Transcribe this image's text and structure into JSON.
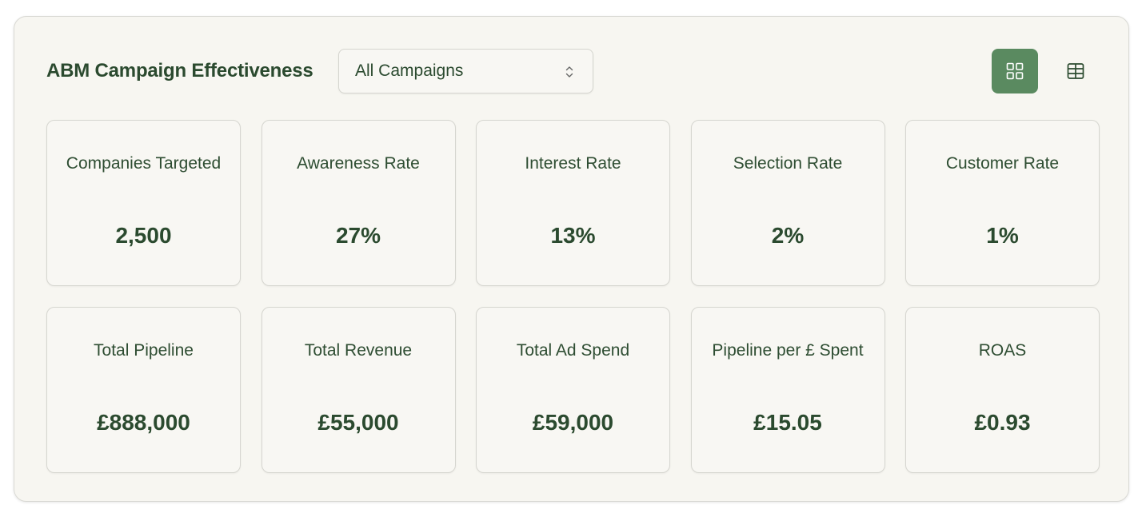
{
  "header": {
    "title": "ABM Campaign Effectiveness",
    "campaign_select": {
      "value": "All Campaigns",
      "icon": "chevron-updown-icon"
    },
    "view_toggle": {
      "grid_icon": "grid-icon",
      "table_icon": "table-icon",
      "active": "grid"
    }
  },
  "colors": {
    "accent": "#5a8a60",
    "text": "#2b4a2f",
    "panel_bg": "#f7f6f1"
  },
  "metrics": [
    {
      "label": "Companies Targeted",
      "value": "2,500"
    },
    {
      "label": "Awareness Rate",
      "value": "27%"
    },
    {
      "label": "Interest Rate",
      "value": "13%"
    },
    {
      "label": "Selection Rate",
      "value": "2%"
    },
    {
      "label": "Customer Rate",
      "value": "1%"
    },
    {
      "label": "Total Pipeline",
      "value": "£888,000"
    },
    {
      "label": "Total Revenue",
      "value": "£55,000"
    },
    {
      "label": "Total Ad Spend",
      "value": "£59,000"
    },
    {
      "label": "Pipeline per £ Spent",
      "value": "£15.05"
    },
    {
      "label": "ROAS",
      "value": "£0.93"
    }
  ]
}
